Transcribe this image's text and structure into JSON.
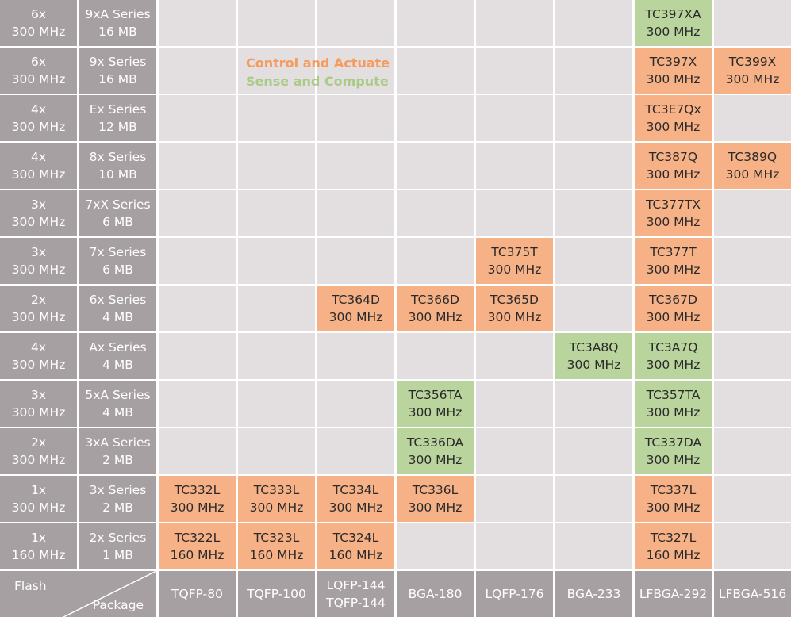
{
  "colors": {
    "header": "#a7a0a3",
    "empty": "#e3dedf",
    "control": "#f7b187",
    "sense": "#b9d49c"
  },
  "legend": {
    "control": "Control and Actuate",
    "sense": "Sense and Compute"
  },
  "corner": {
    "flash": "Flash",
    "package": "Package"
  },
  "packages": [
    "TQFP-80",
    "TQFP-100",
    "LQFP-144\nTQFP-144",
    "BGA-180",
    "LQFP-176",
    "BGA-233",
    "LFBGA-292",
    "LFBGA-516"
  ],
  "rows": [
    {
      "core": "6x\n300 MHz",
      "series": "9xA Series\n16 MB",
      "cells": [
        null,
        null,
        null,
        null,
        null,
        null,
        {
          "t": "TC397XA\n300 MHz",
          "k": "sense"
        },
        null
      ]
    },
    {
      "core": "6x\n300 MHz",
      "series": "9x Series\n16 MB",
      "cells": [
        null,
        null,
        null,
        null,
        null,
        null,
        {
          "t": "TC397X\n300 MHz",
          "k": "control"
        },
        {
          "t": "TC399X\n300 MHz",
          "k": "control"
        }
      ]
    },
    {
      "core": "4x\n300 MHz",
      "series": "Ex Series\n12 MB",
      "cells": [
        null,
        null,
        null,
        null,
        null,
        null,
        {
          "t": "TC3E7Qx\n300 MHz",
          "k": "control"
        },
        null
      ]
    },
    {
      "core": "4x\n300 MHz",
      "series": "8x Series\n10 MB",
      "cells": [
        null,
        null,
        null,
        null,
        null,
        null,
        {
          "t": "TC387Q\n300 MHz",
          "k": "control"
        },
        {
          "t": "TC389Q\n300 MHz",
          "k": "control"
        }
      ]
    },
    {
      "core": "3x\n300 MHz",
      "series": "7xX Series\n6 MB",
      "cells": [
        null,
        null,
        null,
        null,
        null,
        null,
        {
          "t": "TC377TX\n300 MHz",
          "k": "control"
        },
        null
      ]
    },
    {
      "core": "3x\n300 MHz",
      "series": "7x Series\n6 MB",
      "cells": [
        null,
        null,
        null,
        null,
        {
          "t": "TC375T\n300 MHz",
          "k": "control"
        },
        null,
        {
          "t": "TC377T\n300 MHz",
          "k": "control"
        },
        null
      ]
    },
    {
      "core": "2x\n300 MHz",
      "series": "6x Series\n4 MB",
      "cells": [
        null,
        null,
        {
          "t": "TC364D\n300 MHz",
          "k": "control"
        },
        {
          "t": "TC366D\n300 MHz",
          "k": "control"
        },
        {
          "t": "TC365D\n300 MHz",
          "k": "control"
        },
        null,
        {
          "t": "TC367D\n300 MHz",
          "k": "control"
        },
        null
      ]
    },
    {
      "core": "4x\n300 MHz",
      "series": "Ax Series\n4 MB",
      "cells": [
        null,
        null,
        null,
        null,
        null,
        {
          "t": "TC3A8Q\n300 MHz",
          "k": "sense"
        },
        {
          "t": "TC3A7Q\n300 MHz",
          "k": "sense"
        },
        null
      ]
    },
    {
      "core": "3x\n300 MHz",
      "series": "5xA Series\n4 MB",
      "cells": [
        null,
        null,
        null,
        {
          "t": "TC356TA\n300 MHz",
          "k": "sense"
        },
        null,
        null,
        {
          "t": "TC357TA\n300 MHz",
          "k": "sense"
        },
        null
      ]
    },
    {
      "core": "2x\n300 MHz",
      "series": "3xA Series\n2 MB",
      "cells": [
        null,
        null,
        null,
        {
          "t": "TC336DA\n300 MHz",
          "k": "sense"
        },
        null,
        null,
        {
          "t": "TC337DA\n300 MHz",
          "k": "sense"
        },
        null
      ]
    },
    {
      "core": "1x\n300 MHz",
      "series": "3x Series\n2 MB",
      "cells": [
        {
          "t": "TC332L\n300 MHz",
          "k": "control"
        },
        {
          "t": "TC333L\n300 MHz",
          "k": "control"
        },
        {
          "t": "TC334L\n300 MHz",
          "k": "control"
        },
        {
          "t": "TC336L\n300 MHz",
          "k": "control"
        },
        null,
        null,
        {
          "t": "TC337L\n300 MHz",
          "k": "control"
        },
        null
      ]
    },
    {
      "core": "1x\n160 MHz",
      "series": "2x Series\n1 MB",
      "cells": [
        {
          "t": "TC322L\n160 MHz",
          "k": "control"
        },
        {
          "t": "TC323L\n160 MHz",
          "k": "control"
        },
        {
          "t": "TC324L\n160 MHz",
          "k": "control"
        },
        null,
        null,
        null,
        {
          "t": "TC327L\n160 MHz",
          "k": "control"
        },
        null
      ]
    }
  ]
}
